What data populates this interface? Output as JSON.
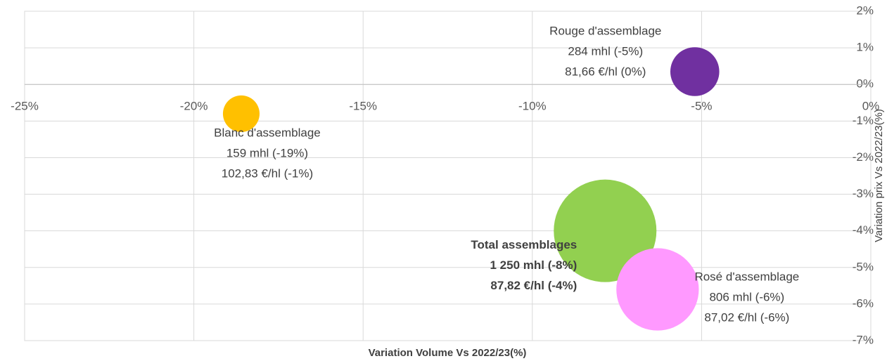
{
  "chart_data": {
    "type": "bubble",
    "x_label": "Variation Volume Vs 2022/23(%)",
    "y_label": "Variation prix Vs 2022/23(%)",
    "xlim": [
      -25,
      0
    ],
    "ylim": [
      -7,
      2
    ],
    "xticks": [
      {
        "value": -25,
        "label": "-25%"
      },
      {
        "value": -20,
        "label": "-20%"
      },
      {
        "value": -15,
        "label": "-15%"
      },
      {
        "value": -10,
        "label": "-10%"
      },
      {
        "value": -5,
        "label": "-5%"
      },
      {
        "value": 0,
        "label": "0%"
      }
    ],
    "yticks": [
      {
        "value": 2,
        "label": "2%"
      },
      {
        "value": 1,
        "label": "1%"
      },
      {
        "value": 0,
        "label": "0%"
      },
      {
        "value": -1,
        "label": "-1%"
      },
      {
        "value": -2,
        "label": "-2%"
      },
      {
        "value": -3,
        "label": "-3%"
      },
      {
        "value": -4,
        "label": "-4%"
      },
      {
        "value": -5,
        "label": "-5%"
      },
      {
        "value": -6,
        "label": "-6%"
      },
      {
        "value": -7,
        "label": "-7%"
      }
    ],
    "grid": true,
    "series": [
      {
        "name": "Blanc d'assemblage",
        "color": "#FFC000",
        "x": [
          -18.6
        ],
        "values": [
          -0.8
        ],
        "sizes": [
          159
        ],
        "label_lines": [
          "159 mhl (-19%)",
          "102,83 €/hl (-1%)"
        ]
      },
      {
        "name": "Rouge d'assemblage",
        "color": "#7030A0",
        "x": [
          -5.2
        ],
        "values": [
          0.35
        ],
        "sizes": [
          284
        ],
        "label_lines": [
          "284 mhl (-5%)",
          "81,66 €/hl (0%)"
        ]
      },
      {
        "name": "Total assemblages",
        "color": "#92D050",
        "x": [
          -7.85
        ],
        "values": [
          -4.0
        ],
        "sizes": [
          1250
        ],
        "label_lines": [
          "1 250 mhl (-8%)",
          "87,82 €/hl (-4%)"
        ]
      },
      {
        "name": "Rosé d'assemblage",
        "color": "#FF99FF",
        "x": [
          -6.3
        ],
        "values": [
          -5.6
        ],
        "sizes": [
          806
        ],
        "label_lines": [
          "806 mhl (-6%)",
          "87,02 €/hl (-6%)"
        ]
      }
    ]
  }
}
